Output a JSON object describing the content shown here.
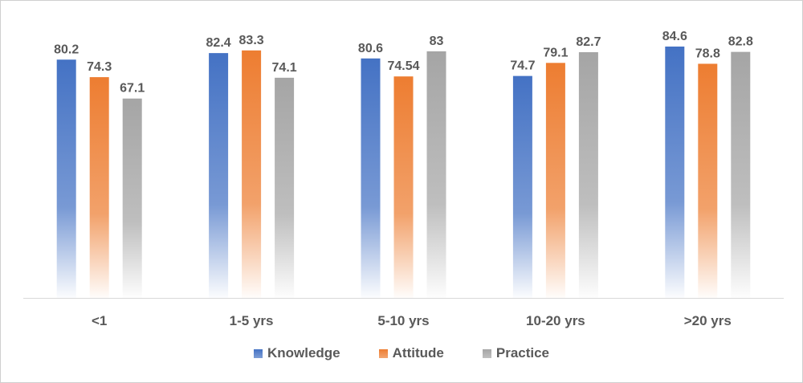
{
  "chart_data": {
    "type": "bar",
    "title": "",
    "xlabel": "",
    "ylabel": "",
    "categories": [
      "<1",
      "1-5 yrs",
      "5-10 yrs",
      "10-20 yrs",
      ">20 yrs"
    ],
    "series": [
      {
        "name": "Knowledge",
        "color": "#4472c4",
        "values": [
          80.2,
          82.4,
          80.6,
          74.7,
          84.6
        ],
        "labels": [
          "80.2",
          "82.4",
          "80.6",
          "74.7",
          "84.6"
        ]
      },
      {
        "name": "Attitude",
        "color": "#ed7d31",
        "values": [
          74.3,
          83.3,
          74.54,
          79.1,
          78.8
        ],
        "labels": [
          "74.3",
          "83.3",
          "74.54",
          "79.1",
          "78.8"
        ]
      },
      {
        "name": "Practice",
        "color": "#a5a5a5",
        "values": [
          67.1,
          74.1,
          83,
          82.7,
          82.8
        ],
        "labels": [
          "67.1",
          "74.1",
          "83",
          "82.7",
          "82.8"
        ]
      }
    ],
    "ylim": [
      0,
      100
    ],
    "grid": false,
    "legend": "bottom",
    "bar_style": "gradient fading to white at base"
  }
}
